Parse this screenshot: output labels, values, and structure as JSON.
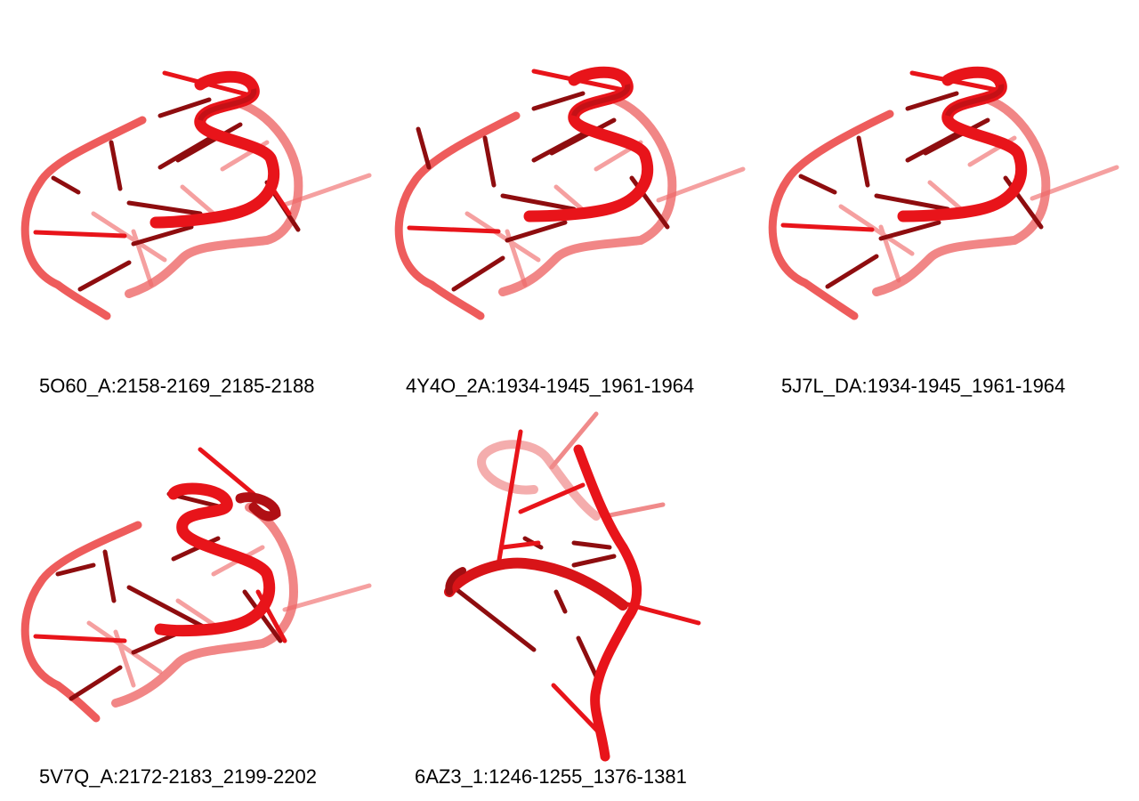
{
  "colors": {
    "backbone_front": "#e8141a",
    "backbone_back": "#ee5c5c",
    "base_dark": "#8e0d0f",
    "base_light": "#f5a0a0"
  },
  "panels": [
    {
      "label": "5O60_A:2158-2169_2185-2188"
    },
    {
      "label": "4Y4O_2A:1934-1945_1961-1964"
    },
    {
      "label": "5J7L_DA:1934-1945_1961-1964"
    },
    {
      "label": "5V7Q_A:2172-2183_2199-2202"
    },
    {
      "label": "6AZ3_1:1246-1255_1376-1381"
    }
  ]
}
